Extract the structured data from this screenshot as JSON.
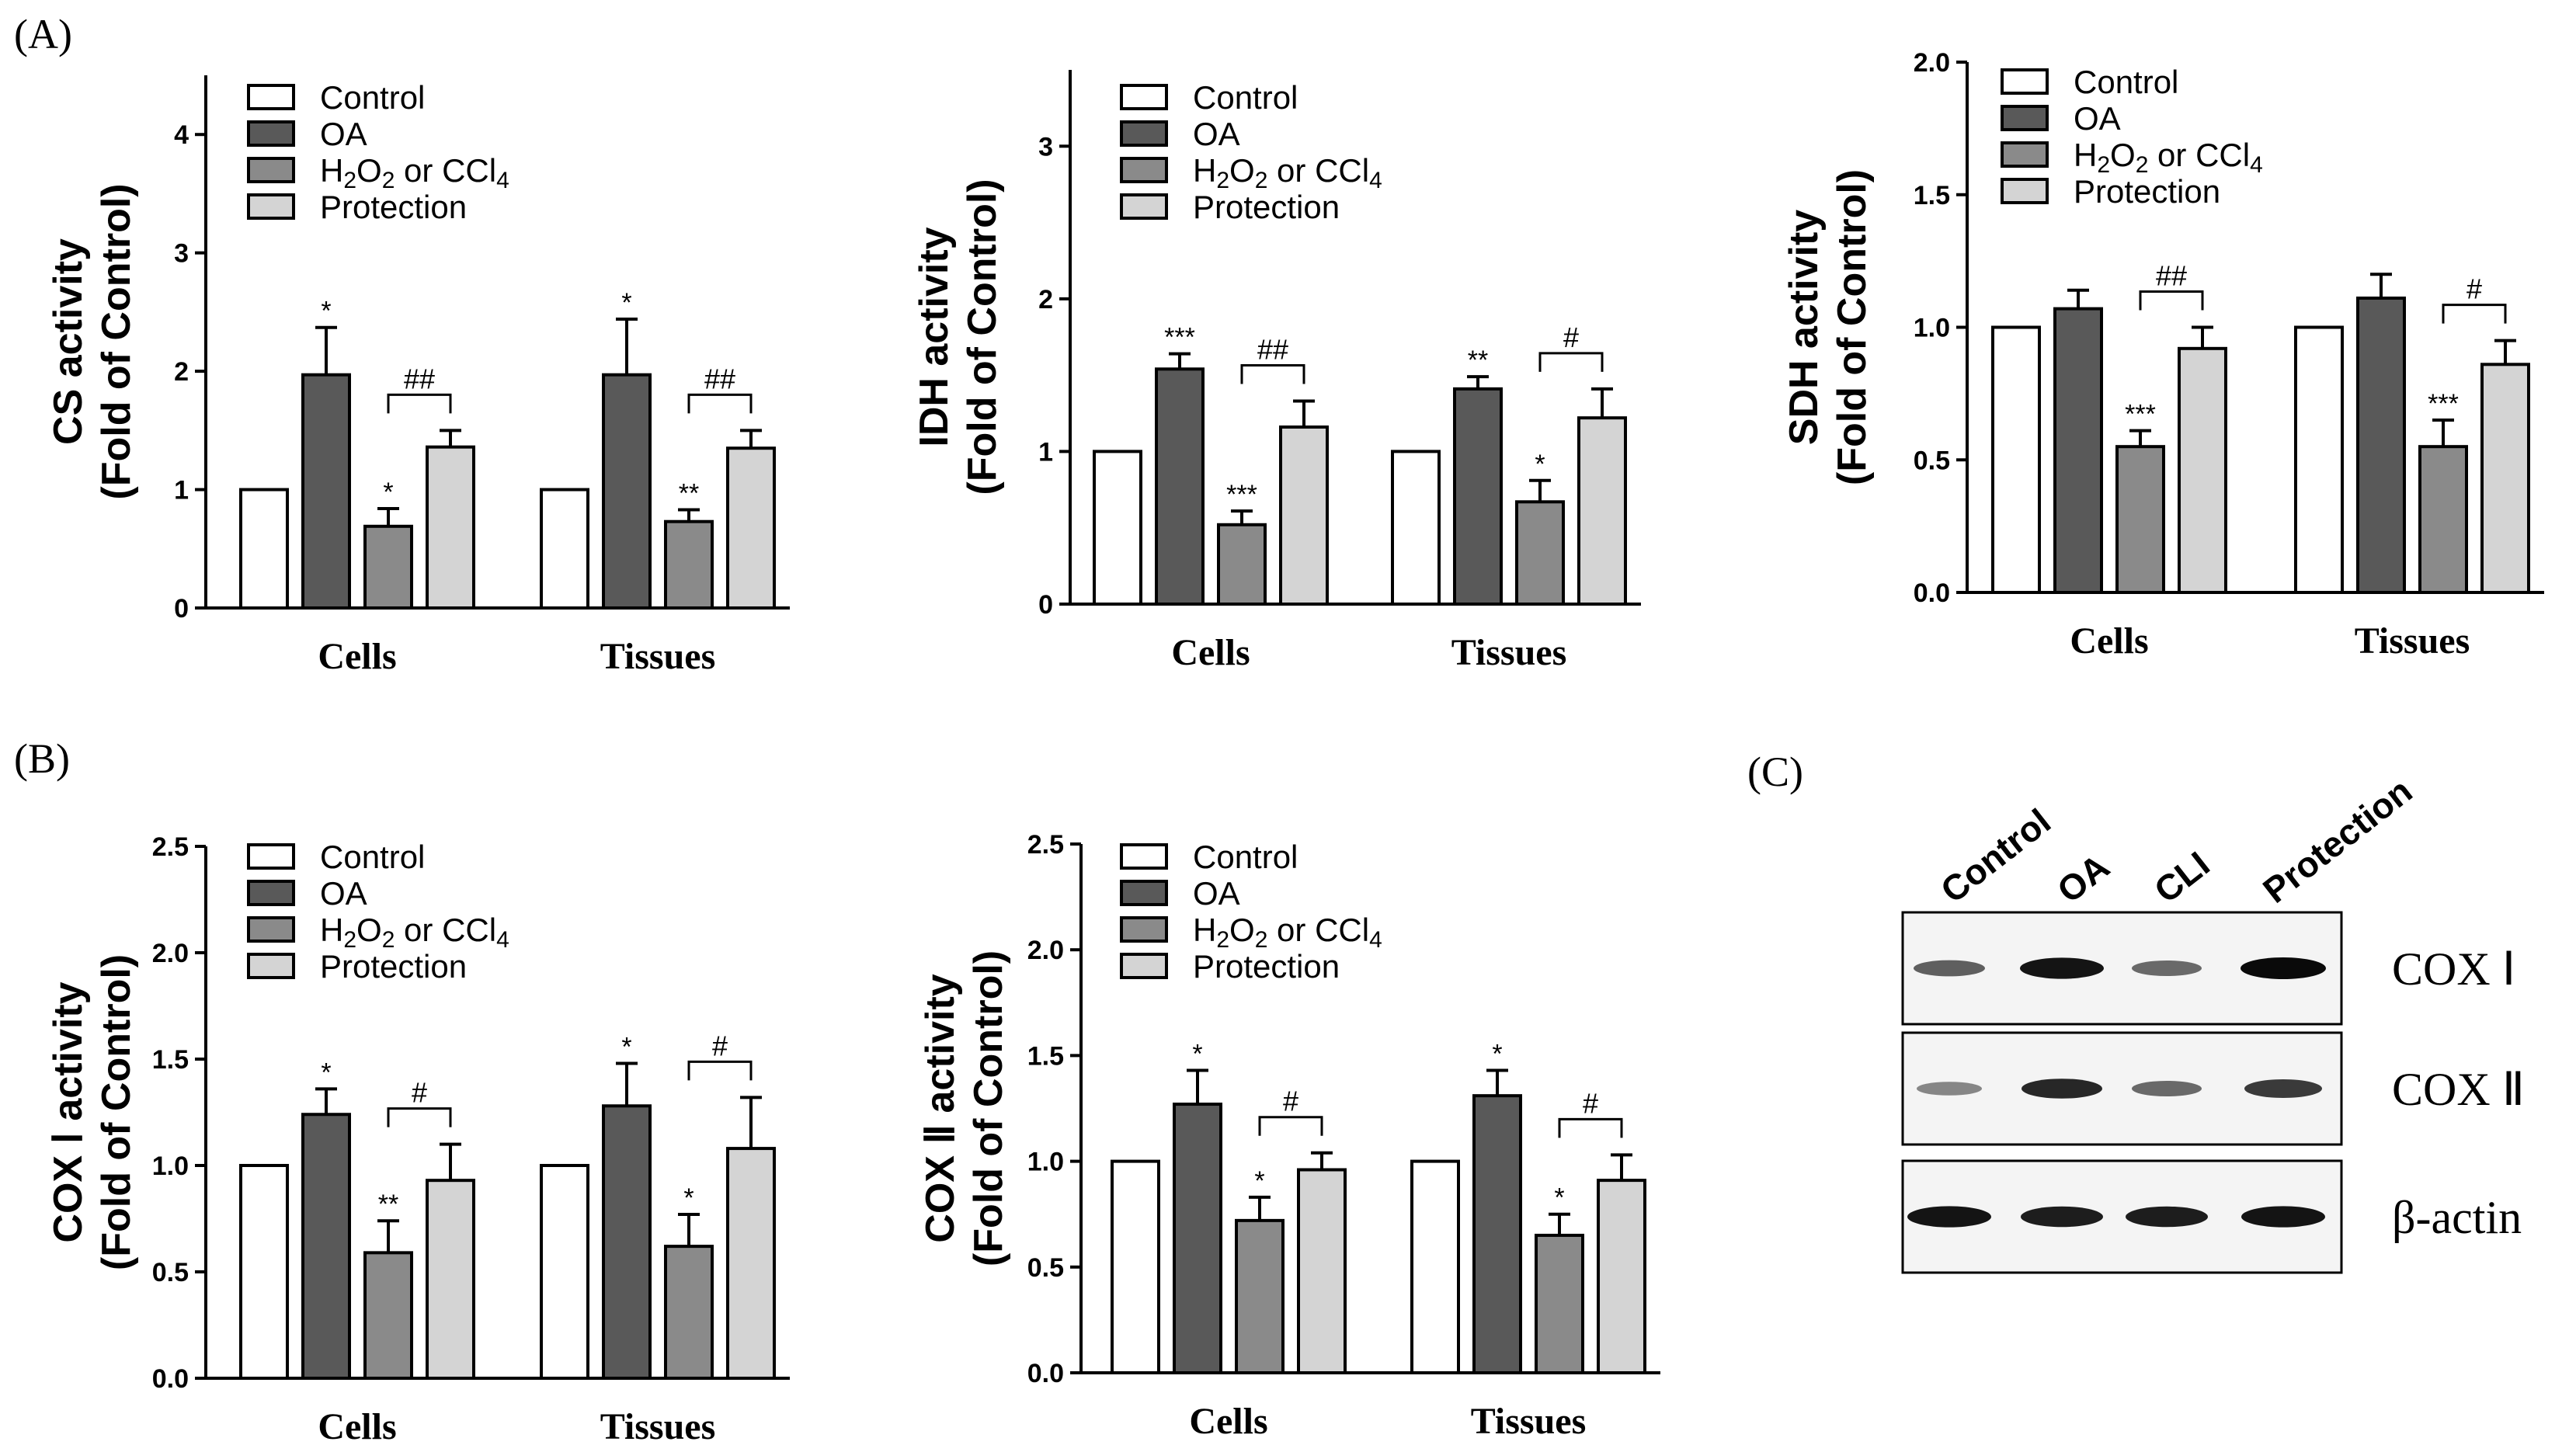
{
  "colors": {
    "control": "#ffffff",
    "oa": "#595959",
    "injury": "#8a8a8a",
    "protection": "#d4d4d4",
    "stroke": "#000000"
  },
  "chart_data": [
    {
      "type": "bar",
      "panel_label": "(A)",
      "ylabel_line1": "CS activity",
      "ylabel_line2": "(Fold of Control)",
      "categories": [
        "Cells",
        "Tissues"
      ],
      "ylim": [
        0,
        4.5
      ],
      "yticks": [
        "0",
        "1",
        "2",
        "3",
        "4"
      ],
      "ytick_values": [
        0,
        1,
        2,
        3,
        4
      ],
      "series": [
        {
          "name": "Control",
          "values": [
            1.0,
            1.0
          ],
          "errors": [
            0,
            0
          ],
          "sig": [
            "",
            ""
          ]
        },
        {
          "name": "OA",
          "values": [
            1.97,
            1.97
          ],
          "errors": [
            0.4,
            0.47
          ],
          "sig": [
            "*",
            "*"
          ]
        },
        {
          "name": "H2O2 or CCl4",
          "values": [
            0.69,
            0.73
          ],
          "errors": [
            0.15,
            0.1
          ],
          "sig": [
            "*",
            "**"
          ]
        },
        {
          "name": "Protection",
          "values": [
            1.36,
            1.35
          ],
          "errors": [
            0.14,
            0.15
          ],
          "sig": [
            "",
            ""
          ]
        }
      ],
      "brackets": [
        "##",
        "##"
      ]
    },
    {
      "type": "bar",
      "ylabel_line1": "IDH activity",
      "ylabel_line2": "(Fold of Control)",
      "categories": [
        "Cells",
        "Tissues"
      ],
      "ylim": [
        0,
        3.5
      ],
      "yticks": [
        "0",
        "1",
        "2",
        "3"
      ],
      "ytick_values": [
        0,
        1,
        2,
        3
      ],
      "series": [
        {
          "name": "Control",
          "values": [
            1.0,
            1.0
          ],
          "errors": [
            0,
            0
          ],
          "sig": [
            "",
            ""
          ]
        },
        {
          "name": "OA",
          "values": [
            1.54,
            1.41
          ],
          "errors": [
            0.1,
            0.08
          ],
          "sig": [
            "***",
            "**"
          ]
        },
        {
          "name": "H2O2 or CCl4",
          "values": [
            0.52,
            0.67
          ],
          "errors": [
            0.09,
            0.14
          ],
          "sig": [
            "***",
            "*"
          ]
        },
        {
          "name": "Protection",
          "values": [
            1.16,
            1.22
          ],
          "errors": [
            0.17,
            0.19
          ],
          "sig": [
            "",
            ""
          ]
        }
      ],
      "brackets": [
        "##",
        "#"
      ]
    },
    {
      "type": "bar",
      "ylabel_line1": "SDH activity",
      "ylabel_line2": "(Fold of Control)",
      "categories": [
        "Cells",
        "Tissues"
      ],
      "ylim": [
        0,
        2.0
      ],
      "yticks": [
        "0.0",
        "0.5",
        "1.0",
        "1.5",
        "2.0"
      ],
      "ytick_values": [
        0,
        0.5,
        1.0,
        1.5,
        2.0
      ],
      "series": [
        {
          "name": "Control",
          "values": [
            1.0,
            1.0
          ],
          "errors": [
            0,
            0
          ],
          "sig": [
            "",
            ""
          ]
        },
        {
          "name": "OA",
          "values": [
            1.07,
            1.11
          ],
          "errors": [
            0.07,
            0.09
          ],
          "sig": [
            "",
            ""
          ]
        },
        {
          "name": "H2O2 or CCl4",
          "values": [
            0.55,
            0.55
          ],
          "errors": [
            0.06,
            0.1
          ],
          "sig": [
            "***",
            "***"
          ]
        },
        {
          "name": "Protection",
          "values": [
            0.92,
            0.86
          ],
          "errors": [
            0.08,
            0.09
          ],
          "sig": [
            "",
            ""
          ]
        }
      ],
      "brackets": [
        "##",
        "#"
      ]
    },
    {
      "type": "bar",
      "panel_label": "(B)",
      "ylabel_line1": "COX Ⅰ activity",
      "ylabel_line2": "(Fold of Control)",
      "categories": [
        "Cells",
        "Tissues"
      ],
      "ylim": [
        0,
        2.5
      ],
      "yticks": [
        "0.0",
        "0.5",
        "1.0",
        "1.5",
        "2.0",
        "2.5"
      ],
      "ytick_values": [
        0,
        0.5,
        1.0,
        1.5,
        2.0,
        2.5
      ],
      "series": [
        {
          "name": "Control",
          "values": [
            1.0,
            1.0
          ],
          "errors": [
            0,
            0
          ],
          "sig": [
            "",
            ""
          ]
        },
        {
          "name": "OA",
          "values": [
            1.24,
            1.28
          ],
          "errors": [
            0.12,
            0.2
          ],
          "sig": [
            "*",
            "*"
          ]
        },
        {
          "name": "H2O2 or CCl4",
          "values": [
            0.59,
            0.62
          ],
          "errors": [
            0.15,
            0.15
          ],
          "sig": [
            "**",
            "*"
          ]
        },
        {
          "name": "Protection",
          "values": [
            0.93,
            1.08
          ],
          "errors": [
            0.17,
            0.24
          ],
          "sig": [
            "",
            ""
          ]
        }
      ],
      "brackets": [
        "#",
        "#"
      ]
    },
    {
      "type": "bar",
      "ylabel_line1": "COX Ⅱ activity",
      "ylabel_line2": "(Fold of Control)",
      "categories": [
        "Cells",
        "Tissues"
      ],
      "ylim": [
        0,
        2.5
      ],
      "yticks": [
        "0.0",
        "0.5",
        "1.0",
        "1.5",
        "2.0",
        "2.5"
      ],
      "ytick_values": [
        0,
        0.5,
        1.0,
        1.5,
        2.0,
        2.5
      ],
      "series": [
        {
          "name": "Control",
          "values": [
            1.0,
            1.0
          ],
          "errors": [
            0,
            0
          ],
          "sig": [
            "",
            ""
          ]
        },
        {
          "name": "OA",
          "values": [
            1.27,
            1.31
          ],
          "errors": [
            0.16,
            0.12
          ],
          "sig": [
            "*",
            "*"
          ]
        },
        {
          "name": "H2O2 or CCl4",
          "values": [
            0.72,
            0.65
          ],
          "errors": [
            0.11,
            0.1
          ],
          "sig": [
            "*",
            "*"
          ]
        },
        {
          "name": "Protection",
          "values": [
            0.96,
            0.91
          ],
          "errors": [
            0.08,
            0.12
          ],
          "sig": [
            "",
            ""
          ]
        }
      ],
      "brackets": [
        "#",
        "#"
      ]
    }
  ],
  "legend": {
    "control": "Control",
    "oa": "OA",
    "injury_h": "H",
    "injury_sub1": "2",
    "injury_o": "O",
    "injury_sub2": "2",
    "injury_rest": " or CCl",
    "injury_sub3": "4",
    "protection": "Protection"
  },
  "western_blot": {
    "panel_label": "(C)",
    "lanes": [
      "Control",
      "OA",
      "CLI",
      "Protection"
    ],
    "rows": [
      {
        "label": "COX Ⅰ",
        "intensity": [
          0.55,
          0.95,
          0.5,
          1.0
        ]
      },
      {
        "label": "COX Ⅱ",
        "intensity": [
          0.35,
          0.85,
          0.5,
          0.75
        ]
      },
      {
        "label": "β-actin",
        "intensity": [
          0.95,
          0.9,
          0.9,
          0.95
        ]
      }
    ]
  }
}
